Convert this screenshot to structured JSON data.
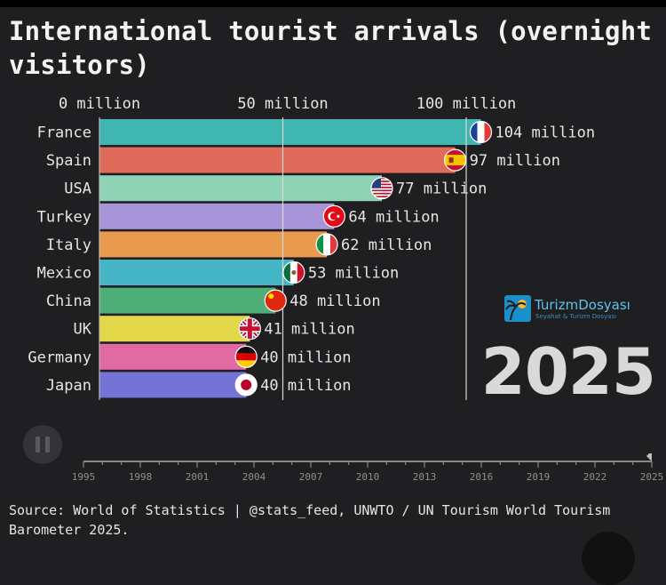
{
  "title": "International tourist arrivals (overnight visitors)",
  "year": "2025",
  "source": "Source: World of Statistics | @stats_feed, UNWTO / UN Tourism World Tourism Barometer 2025.",
  "logo": {
    "name": "TurizmDosyası",
    "tagline": "Seyahat & Turizm Dosyası"
  },
  "colors": {
    "background": "#1f1f22",
    "gridline": "#d8d8d8",
    "text": "#e6e6e6"
  },
  "chart_data": {
    "type": "bar",
    "orientation": "horizontal",
    "categories": [
      "France",
      "Spain",
      "USA",
      "Turkey",
      "Italy",
      "Mexico",
      "China",
      "UK",
      "Germany",
      "Japan"
    ],
    "values": [
      104,
      97,
      77,
      64,
      62,
      53,
      48,
      41,
      40,
      40
    ],
    "value_labels": [
      "104 million",
      "97 million",
      "77 million",
      "64 million",
      "62 million",
      "53 million",
      "48 million",
      "41 million",
      "40 million",
      "40 million"
    ],
    "bar_colors": [
      "#3fb6b2",
      "#e06b5a",
      "#8fd3b6",
      "#a895d9",
      "#e89a4f",
      "#45b4c5",
      "#4eae78",
      "#e2d84a",
      "#e26aa3",
      "#7473d6"
    ],
    "flags": [
      "france-flag",
      "spain-flag",
      "usa-flag",
      "turkey-flag",
      "italy-flag",
      "mexico-flag",
      "china-flag",
      "uk-flag",
      "germany-flag",
      "japan-flag"
    ],
    "x_ticks": [
      0,
      50,
      100
    ],
    "x_tick_labels": [
      "0 million",
      "50 million",
      "100 million"
    ],
    "xlim": [
      0,
      104
    ],
    "timeline": {
      "years": [
        "1995",
        "1998",
        "2001",
        "2004",
        "2007",
        "2010",
        "2013",
        "2016",
        "2019",
        "2022",
        "2025"
      ],
      "range": [
        1995,
        2025
      ],
      "current": 2025
    }
  }
}
